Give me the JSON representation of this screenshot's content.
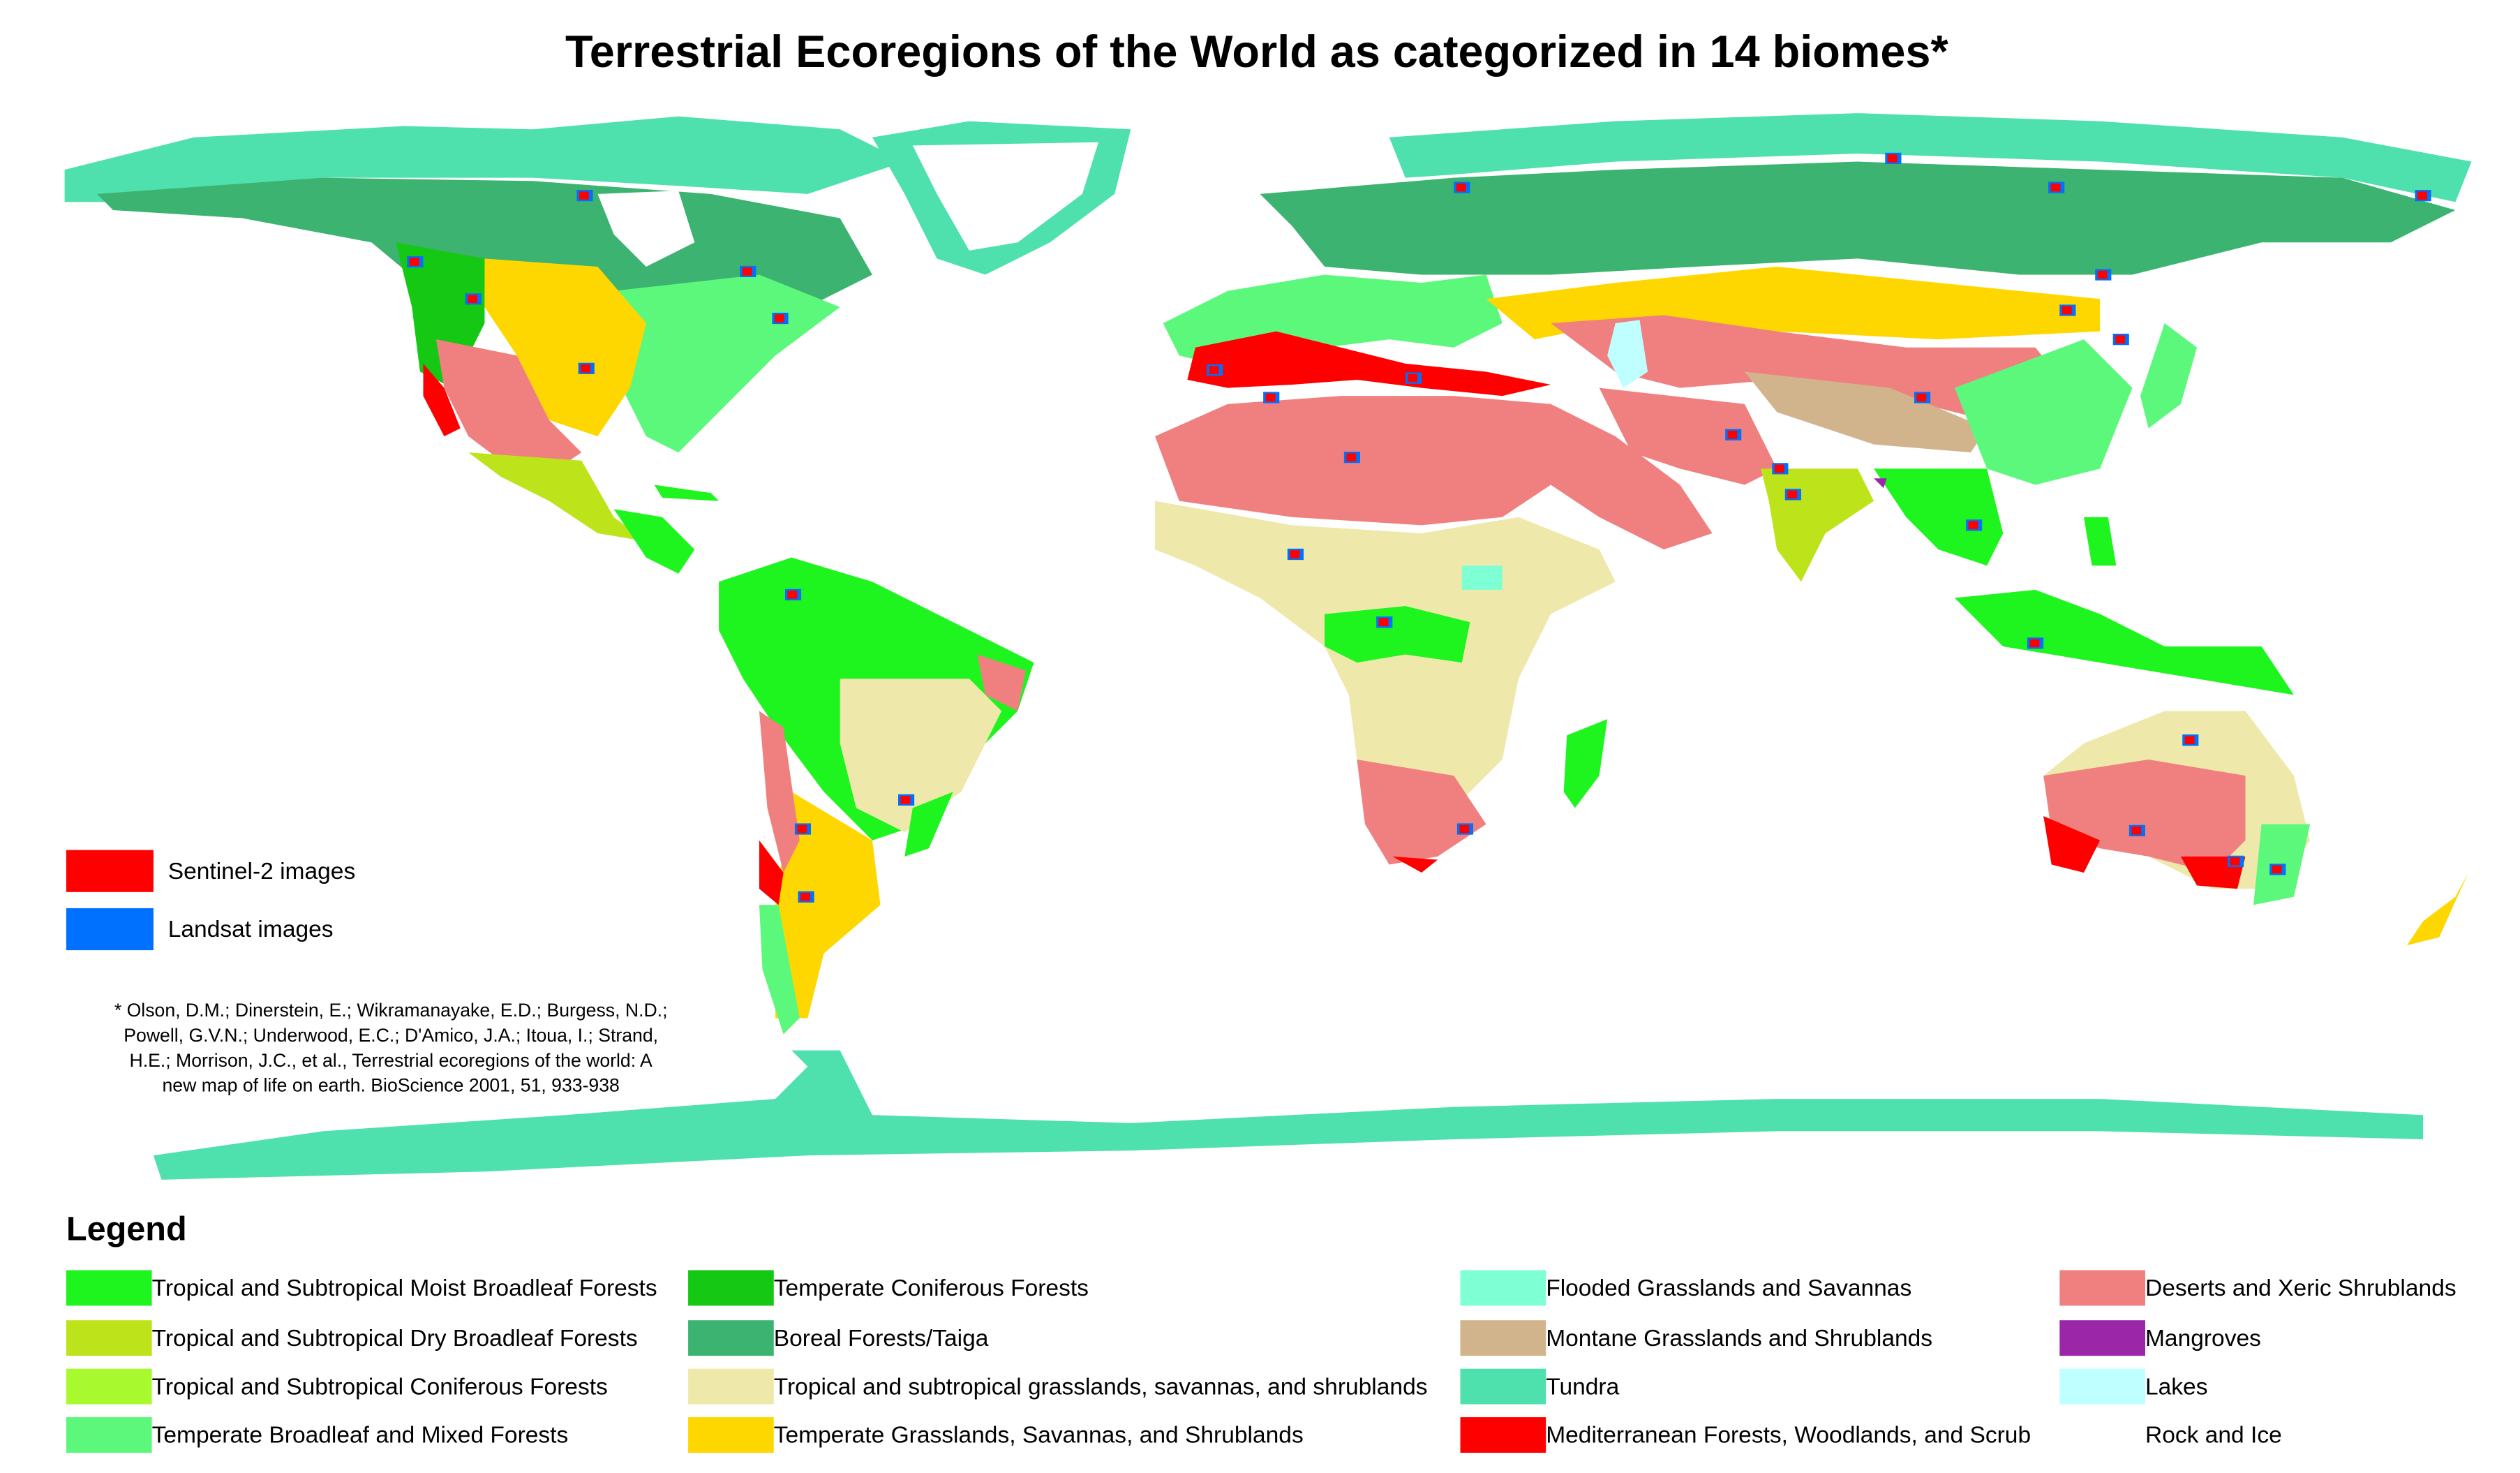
{
  "title": "Terrestrial Ecoregions of the World as categorized in 14 biomes*",
  "image_legend": {
    "items": [
      {
        "label": "Sentinel-2 images",
        "color": "#ff0000"
      },
      {
        "label": "Landsat images",
        "color": "#0070ff"
      }
    ]
  },
  "citation": {
    "lines": [
      "* Olson, D.M.; Dinerstein, E.; Wikramanayake, E.D.; Burgess, N.D.;",
      "Powell, G.V.N.; Underwood, E.C.; D'Amico, J.A.; Itoua, I.; Strand,",
      "H.E.; Morrison, J.C., et al., Terrestrial ecoregions of the world: A",
      "new map of life on earth. BioScience 2001, 51, 933-938"
    ]
  },
  "legend": {
    "title": "Legend",
    "items": [
      {
        "label": "Tropical and Subtropical Moist Broadleaf Forests",
        "color": "#1ef51e"
      },
      {
        "label": "Tropical and Subtropical Dry Broadleaf Forests",
        "color": "#bde31a"
      },
      {
        "label": "Tropical and Subtropical Coniferous Forests",
        "color": "#a8fa2e"
      },
      {
        "label": "Temperate Broadleaf and Mixed Forests",
        "color": "#5cf87c"
      },
      {
        "label": "Temperate Coniferous Forests",
        "color": "#14c814"
      },
      {
        "label": "Boreal Forests/Taiga",
        "color": "#3cb371"
      },
      {
        "label": "Tropical and subtropical grasslands, savannas, and shrublands",
        "color": "#eee8aa"
      },
      {
        "label": "Temperate Grasslands, Savannas, and Shrublands",
        "color": "#ffd700"
      },
      {
        "label": "Flooded Grasslands and Savannas",
        "color": "#7fffd4"
      },
      {
        "label": "Montane Grasslands and Shrublands",
        "color": "#d2b48c"
      },
      {
        "label": "Tundra",
        "color": "#4ee0ad"
      },
      {
        "label": "Mediterranean Forests, Woodlands, and Scrub",
        "color": "#ff0000"
      },
      {
        "label": "Deserts and Xeric Shrublands",
        "color": "#f08080"
      },
      {
        "label": "Mangroves",
        "color": "#9b27a8"
      },
      {
        "label": "Lakes",
        "color": "#c0ffff"
      },
      {
        "label": "Rock and Ice",
        "color": "#ffffff"
      }
    ]
  }
}
